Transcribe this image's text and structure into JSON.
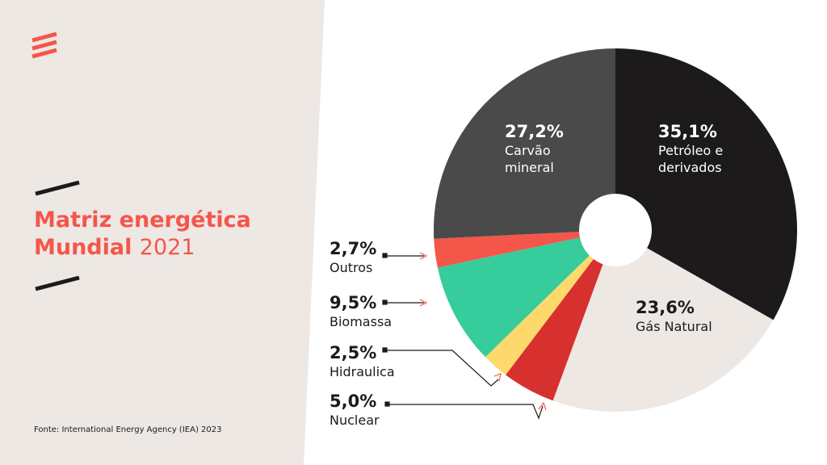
{
  "chart_data": {
    "type": "pie",
    "title": "Matriz energética",
    "title_bold": "Mundial",
    "title_year": "2021",
    "source": "Fonte: International Energy Agency (IEA) 2023",
    "categories": [
      "Petróleo e derivados",
      "Gás Natural",
      "Nuclear",
      "Hidraulica",
      "Biomassa",
      "Outros",
      "Carvão mineral"
    ],
    "values": [
      35.1,
      23.6,
      5.0,
      2.5,
      9.5,
      2.7,
      27.2
    ],
    "value_labels": [
      "35,1%",
      "23,6%",
      "5,0%",
      "2,5%",
      "9,5%",
      "2,7%",
      "27,2%"
    ],
    "colors": [
      "#1c1a1a",
      "#ede8e4",
      "#d6312f",
      "#fcd96a",
      "#36cc9c",
      "#f5564a",
      "#4a4a4a"
    ]
  }
}
